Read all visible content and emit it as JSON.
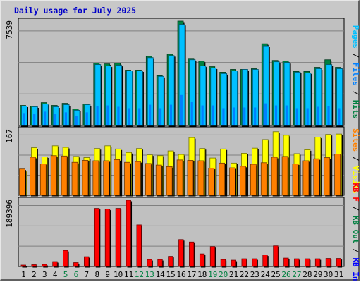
{
  "title": "Daily usage for July 2025",
  "colors": {
    "pages": "#00c0ff",
    "files": "#0080ff",
    "hits": "#008040",
    "visits": "#ffff00",
    "sites": "#ff8000",
    "kb_in": "#0000ff",
    "kb_out": "#008040",
    "kb_f": "#ff0000",
    "weekend": "#008040",
    "weekday": "#000000"
  },
  "chart_data": [
    {
      "type": "bar",
      "panel": "hits",
      "ymax_label": "7539",
      "ylim": [
        0,
        7539
      ],
      "right_labels": [
        {
          "text": "Pages",
          "color": "#00c0ff"
        },
        {
          "text": " / ",
          "color": "#000000"
        },
        {
          "text": "Files",
          "color": "#0080ff"
        },
        {
          "text": " / ",
          "color": "#000000"
        },
        {
          "text": "Hits",
          "color": "#008040"
        }
      ],
      "categories": [
        "1",
        "2",
        "3",
        "4",
        "5",
        "6",
        "7",
        "8",
        "9",
        "10",
        "11",
        "12",
        "13",
        "14",
        "15",
        "16",
        "17",
        "18",
        "19",
        "20",
        "21",
        "22",
        "23",
        "24",
        "25",
        "26",
        "27",
        "28",
        "29",
        "30",
        "31"
      ],
      "series": [
        {
          "name": "Hits",
          "values": [
            1450,
            1400,
            1650,
            1450,
            1600,
            1200,
            1550,
            4500,
            4450,
            4500,
            4000,
            4000,
            5000,
            3600,
            5150,
            7539,
            4850,
            4650,
            4250,
            3850,
            4050,
            4050,
            4100,
            5900,
            4700,
            4650,
            3900,
            3900,
            4200,
            4750,
            4200
          ]
        },
        {
          "name": "Files",
          "values": [
            900,
            850,
            1000,
            850,
            950,
            700,
            950,
            1400,
            1450,
            1350,
            1250,
            1250,
            1500,
            1250,
            1500,
            2200,
            1700,
            1450,
            1450,
            1250,
            1300,
            1300,
            1300,
            1600,
            1450,
            1450,
            1250,
            1250,
            1350,
            1400,
            1250
          ]
        },
        {
          "name": "Pages",
          "values": [
            1400,
            1350,
            1550,
            1350,
            1500,
            1100,
            1500,
            4400,
            4300,
            4350,
            3950,
            3950,
            4900,
            3550,
            5050,
            7300,
            4750,
            4300,
            4150,
            3750,
            3950,
            4050,
            4050,
            5750,
            4600,
            4550,
            3850,
            3800,
            4100,
            4400,
            4100
          ]
        }
      ]
    },
    {
      "type": "bar",
      "panel": "visits",
      "ymax_label": "167",
      "ylim": [
        0,
        167
      ],
      "right_labels": [
        {
          "text": "Sites",
          "color": "#ff8000"
        },
        {
          "text": " / ",
          "color": "#000000"
        },
        {
          "text": "Visits",
          "color": "#ffff00"
        }
      ],
      "categories": [
        "1",
        "2",
        "3",
        "4",
        "5",
        "6",
        "7",
        "8",
        "9",
        "10",
        "11",
        "12",
        "13",
        "14",
        "15",
        "16",
        "17",
        "18",
        "19",
        "20",
        "21",
        "22",
        "23",
        "24",
        "25",
        "26",
        "27",
        "28",
        "29",
        "30",
        "31"
      ],
      "series": [
        {
          "name": "Visits",
          "values": [
            62,
            121,
            98,
            126,
            122,
            99,
            96,
            119,
            126,
            118,
            109,
            119,
            103,
            101,
            113,
            104,
            147,
            119,
            95,
            118,
            82,
            107,
            120,
            142,
            162,
            153,
            106,
            116,
            148,
            155,
            156
          ]
        },
        {
          "name": "Sites",
          "values": [
            67,
            97,
            80,
            101,
            100,
            84,
            89,
            88,
            88,
            91,
            84,
            86,
            81,
            77,
            73,
            90,
            89,
            88,
            69,
            82,
            70,
            74,
            79,
            83,
            97,
            99,
            80,
            88,
            93,
            96,
            105
          ]
        }
      ]
    },
    {
      "type": "bar",
      "panel": "kbytes",
      "ymax_label": "189396",
      "ylim": [
        0,
        189396
      ],
      "right_labels": [
        {
          "text": "KB F",
          "color": "#ff0000"
        },
        {
          "text": " / ",
          "color": "#000000"
        },
        {
          "text": "KB Out",
          "color": "#008040"
        },
        {
          "text": " / ",
          "color": "#000000"
        },
        {
          "text": "KB In",
          "color": "#0000ff"
        }
      ],
      "categories": [
        "1",
        "2",
        "3",
        "4",
        "5",
        "6",
        "7",
        "8",
        "9",
        "10",
        "11",
        "12",
        "13",
        "14",
        "15",
        "16",
        "17",
        "18",
        "19",
        "20",
        "21",
        "22",
        "23",
        "24",
        "25",
        "26",
        "27",
        "28",
        "29",
        "30",
        "31"
      ],
      "series": [
        {
          "name": "KB F",
          "values": [
            4000,
            5000,
            6000,
            14000,
            46000,
            11000,
            28000,
            166000,
            164000,
            166000,
            189396,
            119000,
            20000,
            20000,
            29000,
            77000,
            70000,
            36000,
            57000,
            20000,
            18000,
            22000,
            22000,
            33000,
            59000,
            24000,
            22000,
            22000,
            22000,
            23000,
            23000
          ]
        }
      ]
    }
  ],
  "weekend_days": [
    "5",
    "6",
    "12",
    "13",
    "19",
    "20",
    "26",
    "27"
  ]
}
